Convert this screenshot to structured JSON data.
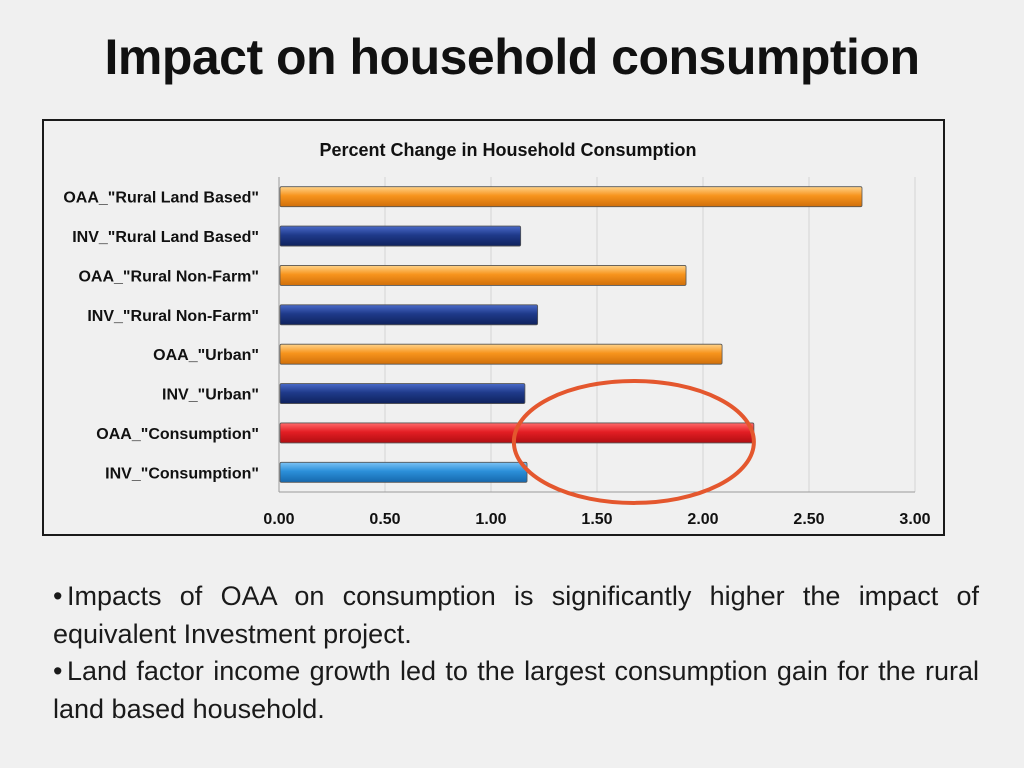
{
  "slide": {
    "title": "Impact on household consumption",
    "bullets": [
      "Impacts of OAA on consumption is significantly higher the impact of equivalent Investment project.",
      "Land factor income growth led to the largest consumption gain for the rural land based household."
    ]
  },
  "chart_data": {
    "type": "bar",
    "orientation": "horizontal",
    "title": "Percent Change in Household Consumption",
    "xlabel": "",
    "ylabel": "",
    "xlim": [
      0,
      3
    ],
    "xticks": [
      "0.00",
      "0.50",
      "1.00",
      "1.50",
      "2.00",
      "2.50",
      "3.00"
    ],
    "grid": true,
    "legend": "none",
    "categories": [
      "OAA_\"Rural Land Based\"",
      "INV_\"Rural Land Based\"",
      "OAA_\"Rural Non-Farm\"",
      "INV_\"Rural Non-Farm\"",
      "OAA_\"Urban\"",
      "INV_\"Urban\"",
      "OAA_\"Consumption\"",
      "INV_\"Consumption\""
    ],
    "values": [
      2.75,
      1.14,
      1.92,
      1.22,
      2.09,
      1.16,
      2.24,
      1.17
    ],
    "bar_colors": [
      "#f7941d",
      "#1f3a8a",
      "#f7941d",
      "#1f3a8a",
      "#f7941d",
      "#1f3a8a",
      "#e31e24",
      "#2b8fd9"
    ],
    "highlight": {
      "shape": "ellipse",
      "color": "#e4572e",
      "category": "OAA_\"Consumption\""
    }
  }
}
